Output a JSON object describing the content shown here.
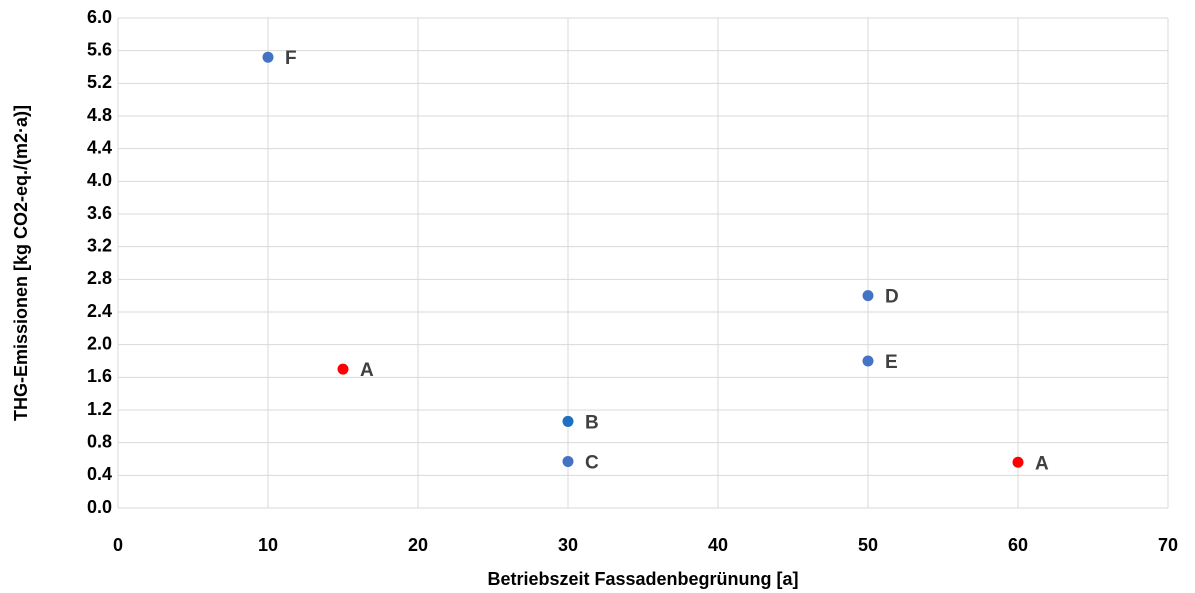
{
  "chart_data": {
    "type": "scatter",
    "x_label": "Betriebszeit Fassadenbegrünung [a]",
    "y_label": "THG-Emissionen  [kg CO2-eq./(m2·a)]",
    "points": [
      {
        "label": "F",
        "x": 10,
        "y": 5.52,
        "color": "#4472c4"
      },
      {
        "label": "A",
        "x": 15,
        "y": 1.7,
        "color": "#ff0000"
      },
      {
        "label": "B",
        "x": 30,
        "y": 1.06,
        "color": "#1f6fc0"
      },
      {
        "label": "C",
        "x": 30,
        "y": 0.57,
        "color": "#4472c4"
      },
      {
        "label": "D",
        "x": 50,
        "y": 2.6,
        "color": "#4472c4"
      },
      {
        "label": "E",
        "x": 50,
        "y": 1.8,
        "color": "#4472c4"
      },
      {
        "label": "A",
        "x": 60,
        "y": 0.56,
        "color": "#ff0000"
      }
    ],
    "xlim": [
      0,
      70
    ],
    "xticks": [
      0,
      10,
      20,
      30,
      40,
      50,
      60,
      70
    ],
    "ylim": [
      0,
      6
    ],
    "yticks": [
      {
        "value": 0,
        "label": "0.0"
      },
      0.4,
      0.8,
      1.2,
      1.6,
      {
        "value": 2,
        "label": "2.0"
      },
      2.4,
      2.8,
      3.2,
      3.6,
      {
        "value": 4,
        "label": "4.0"
      },
      4.4,
      4.8,
      5.2,
      5.6,
      {
        "value": 6,
        "label": "6.0"
      }
    ],
    "grid": true
  }
}
